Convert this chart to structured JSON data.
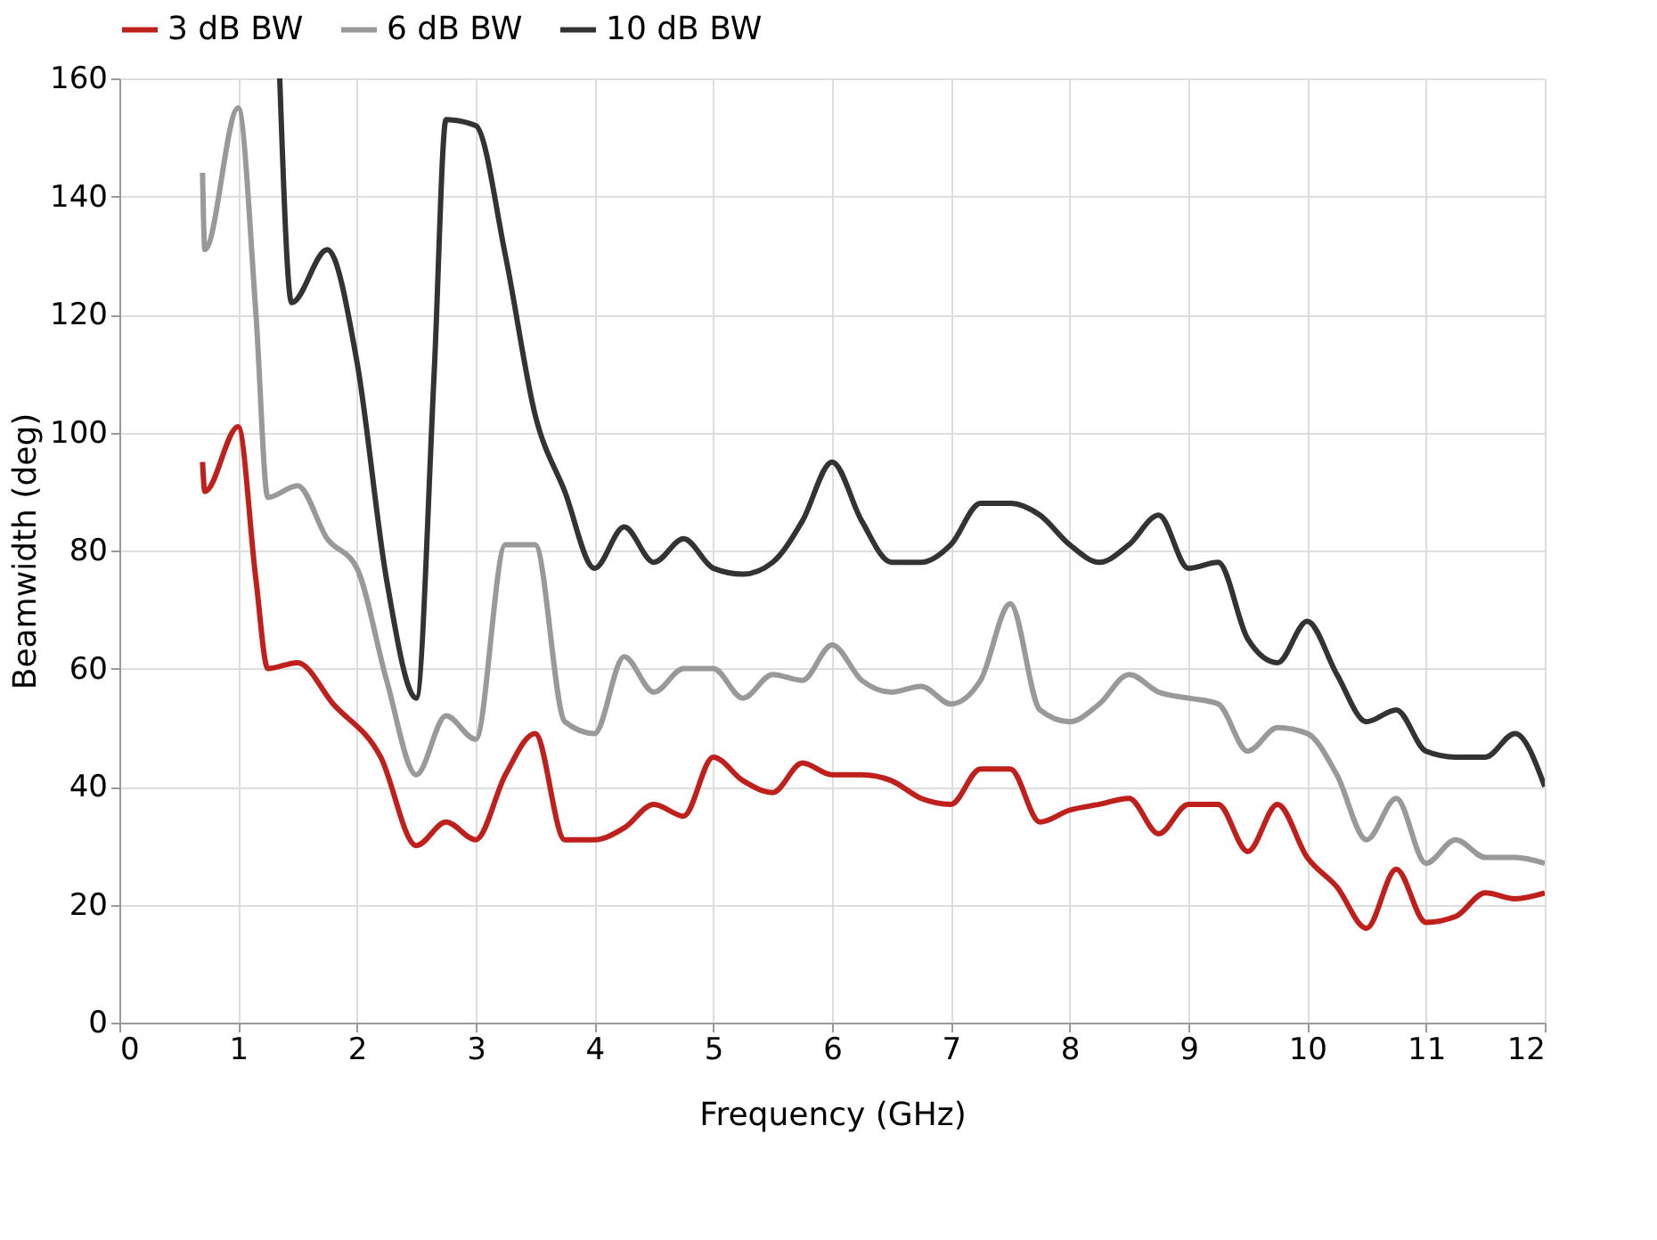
{
  "chart_data": {
    "type": "line",
    "xlabel": "Frequency (GHz)",
    "ylabel": "Beamwidth (deg)",
    "xlim": [
      0,
      12
    ],
    "xticks": [
      0,
      1,
      2,
      3,
      4,
      5,
      6,
      7,
      8,
      9,
      10,
      11,
      12
    ],
    "ylim": [
      0,
      160
    ],
    "yticks": [
      0,
      20,
      40,
      60,
      80,
      100,
      120,
      140,
      160
    ],
    "grid": true,
    "legend": "top",
    "marker": "none",
    "line_style": "solid",
    "series": [
      {
        "name": "3 dB BW",
        "color": "#c0201c",
        "x": [
          0.7,
          0.72,
          1.0,
          1.15,
          1.25,
          1.5,
          1.8,
          2.2,
          2.5,
          2.75,
          3.0,
          3.25,
          3.5,
          3.75,
          4.0,
          4.25,
          4.5,
          4.75,
          5.0,
          5.25,
          5.5,
          5.75,
          6.0,
          6.25,
          6.5,
          6.75,
          7.0,
          7.25,
          7.5,
          7.75,
          8.0,
          8.25,
          8.5,
          8.75,
          9.0,
          9.25,
          9.5,
          9.75,
          10.0,
          10.25,
          10.5,
          10.75,
          11.0,
          11.25,
          11.5,
          11.75,
          12.0
        ],
        "values": [
          95,
          90,
          101,
          75,
          60,
          61,
          54,
          45,
          30,
          34,
          31,
          42,
          49,
          31,
          31,
          33,
          37,
          35,
          45,
          41,
          39,
          44,
          42,
          42,
          41,
          38,
          37,
          43,
          43,
          34,
          36,
          37,
          38,
          32,
          37,
          37,
          29,
          37,
          28,
          23,
          16,
          26,
          17,
          18,
          22,
          21,
          22
        ]
      },
      {
        "name": "6 dB BW",
        "color": "#999999",
        "x": [
          0.7,
          0.72,
          1.0,
          1.15,
          1.25,
          1.5,
          1.75,
          2.0,
          2.25,
          2.5,
          2.75,
          3.0,
          3.25,
          3.5,
          3.75,
          4.0,
          4.25,
          4.5,
          4.75,
          5.0,
          5.25,
          5.5,
          5.75,
          6.0,
          6.25,
          6.5,
          6.75,
          7.0,
          7.25,
          7.5,
          7.75,
          8.0,
          8.25,
          8.5,
          8.75,
          9.0,
          9.25,
          9.5,
          9.75,
          10.0,
          10.25,
          10.5,
          10.75,
          11.0,
          11.25,
          11.5,
          11.75,
          12.0
        ],
        "values": [
          144,
          131,
          155,
          120,
          89,
          91,
          82,
          77,
          58,
          42,
          52,
          48,
          81,
          81,
          51,
          49,
          62,
          56,
          60,
          60,
          55,
          59,
          58,
          64,
          58,
          56,
          57,
          54,
          58,
          71,
          53,
          51,
          54,
          59,
          56,
          55,
          54,
          46,
          50,
          49,
          42,
          31,
          38,
          27,
          31,
          28,
          28,
          27
        ]
      },
      {
        "name": "10 dB BW",
        "color": "#333333",
        "x": [
          1.35,
          1.45,
          1.75,
          2.0,
          2.25,
          2.5,
          2.65,
          2.75,
          3.0,
          3.25,
          3.5,
          3.75,
          4.0,
          4.25,
          4.5,
          4.75,
          5.0,
          5.25,
          5.5,
          5.75,
          6.0,
          6.25,
          6.5,
          6.75,
          7.0,
          7.25,
          7.5,
          7.75,
          8.0,
          8.25,
          8.5,
          8.75,
          9.0,
          9.25,
          9.5,
          9.75,
          10.0,
          10.25,
          10.5,
          10.75,
          11.0,
          11.25,
          11.5,
          11.75,
          12.0
        ],
        "values": [
          160,
          122,
          131,
          112,
          75,
          55,
          110,
          153,
          152,
          130,
          103,
          90,
          77,
          84,
          78,
          82,
          77,
          76,
          78,
          85,
          95,
          85,
          78,
          78,
          81,
          88,
          88,
          86,
          81,
          78,
          81,
          86,
          77,
          78,
          65,
          61,
          68,
          59,
          51,
          53,
          46,
          45,
          45,
          49,
          40
        ]
      }
    ]
  }
}
